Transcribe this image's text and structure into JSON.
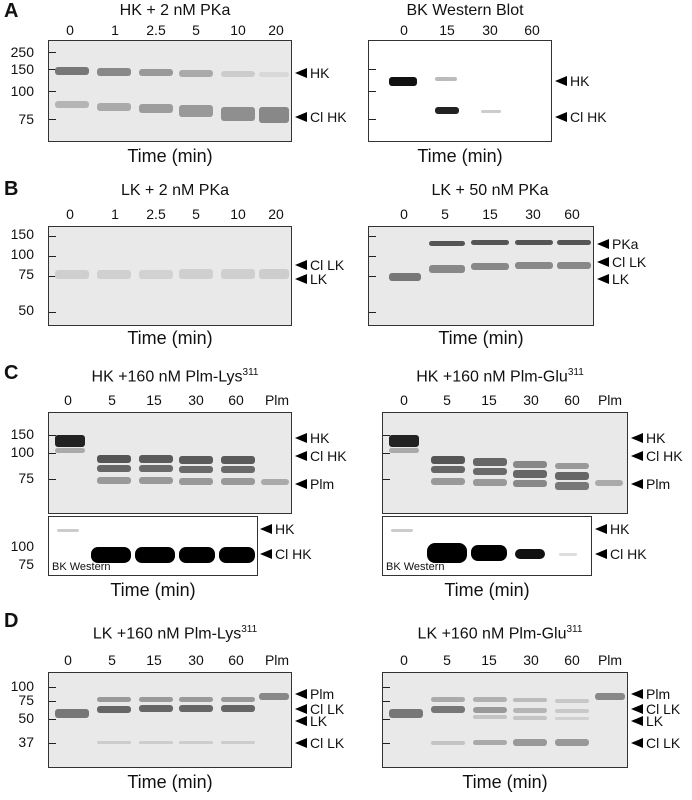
{
  "panels": {
    "A": {
      "label": "A",
      "left": {
        "title": "HK + 2 nM PKa",
        "lanes": [
          "0",
          "1",
          "2.5",
          "5",
          "10",
          "20"
        ],
        "mw": [
          "250",
          "150",
          "100",
          "75"
        ],
        "markers": [
          "HK",
          "Cl HK"
        ],
        "xlabel": "Time (min)"
      },
      "right": {
        "title": "BK Western Blot",
        "lanes": [
          "0",
          "15",
          "30",
          "60"
        ],
        "markers": [
          "HK",
          "Cl HK"
        ],
        "xlabel": "Time (min)"
      }
    },
    "B": {
      "label": "B",
      "left": {
        "title": "LK + 2 nM PKa",
        "lanes": [
          "0",
          "1",
          "2.5",
          "5",
          "10",
          "20"
        ],
        "mw": [
          "150",
          "100",
          "75",
          "50"
        ],
        "markers": [
          "Cl LK",
          "LK"
        ],
        "xlabel": "Time (min)"
      },
      "right": {
        "title": "LK + 50 nM PKa",
        "lanes": [
          "0",
          "5",
          "15",
          "30",
          "60"
        ],
        "markers": [
          "PKa",
          "Cl LK",
          "LK"
        ],
        "xlabel": "Time (min)"
      }
    },
    "C": {
      "label": "C",
      "left": {
        "title": "HK +160 nM Plm-Lys",
        "sup": "311",
        "lanes": [
          "0",
          "5",
          "15",
          "30",
          "60",
          "Plm"
        ],
        "mw": [
          "150",
          "100",
          "75"
        ],
        "mw_blot": [
          "100",
          "75"
        ],
        "markers": [
          "HK",
          "Cl HK",
          "Plm"
        ],
        "blot_markers": [
          "HK",
          "Cl HK"
        ],
        "blot_label": "BK Western",
        "xlabel": "Time (min)"
      },
      "right": {
        "title": "HK +160 nM Plm-Glu",
        "sup": "311",
        "lanes": [
          "0",
          "5",
          "15",
          "30",
          "60",
          "Plm"
        ],
        "markers": [
          "HK",
          "Cl HK",
          "Plm"
        ],
        "blot_markers": [
          "HK",
          "Cl HK"
        ],
        "blot_label": "BK Western",
        "xlabel": "Time (min)"
      }
    },
    "D": {
      "label": "D",
      "left": {
        "title": "LK +160 nM Plm-Lys",
        "sup": "311",
        "lanes": [
          "0",
          "5",
          "15",
          "30",
          "60",
          "Plm"
        ],
        "mw": [
          "100",
          "75",
          "50",
          "37"
        ],
        "markers": [
          "Plm",
          "Cl LK",
          "LK",
          "Cl LK"
        ],
        "xlabel": "Time (min)"
      },
      "right": {
        "title": "LK +160 nM Plm-Glu",
        "sup": "311",
        "lanes": [
          "0",
          "5",
          "15",
          "30",
          "60",
          "Plm"
        ],
        "markers": [
          "Plm",
          "Cl LK",
          "LK",
          "Cl LK"
        ],
        "xlabel": "Time (min)"
      }
    }
  }
}
